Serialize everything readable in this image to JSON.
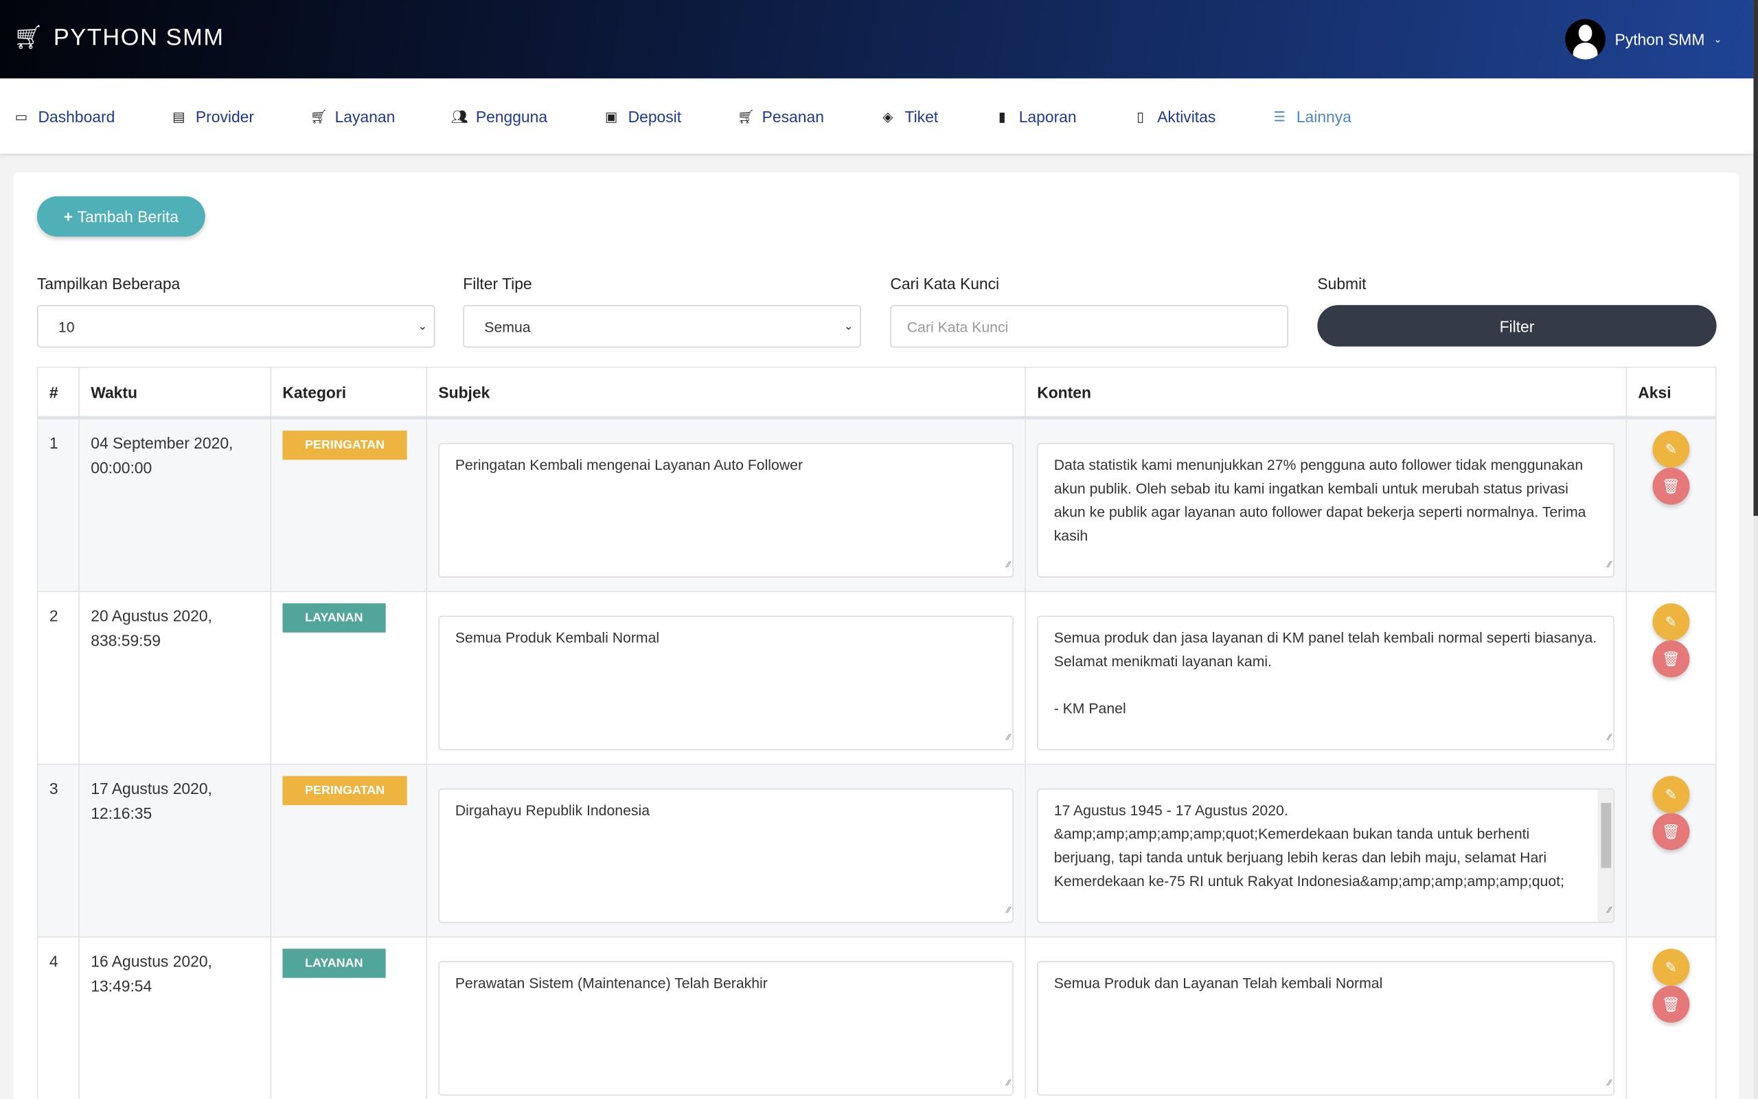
{
  "brand": "PYTHON SMM",
  "user": {
    "name": "Python SMM"
  },
  "nav": [
    {
      "label": "Dashboard",
      "icon": "monitor-icon"
    },
    {
      "label": "Provider",
      "icon": "server-icon"
    },
    {
      "label": "Layanan",
      "icon": "cart-icon"
    },
    {
      "label": "Pengguna",
      "icon": "users-icon"
    },
    {
      "label": "Deposit",
      "icon": "wallet-icon"
    },
    {
      "label": "Pesanan",
      "icon": "cart-icon"
    },
    {
      "label": "Tiket",
      "icon": "ticket-icon"
    },
    {
      "label": "Laporan",
      "icon": "book-icon"
    },
    {
      "label": "Aktivitas",
      "icon": "file-icon"
    },
    {
      "label": "Lainnya",
      "icon": "list-icon"
    }
  ],
  "add_button": "Tambah Berita",
  "filters": {
    "show_label": "Tampilkan Beberapa",
    "show_value": "10",
    "type_label": "Filter Tipe",
    "type_value": "Semua",
    "search_label": "Cari Kata Kunci",
    "search_placeholder": "Cari Kata Kunci",
    "submit_label": "Submit",
    "submit_button": "Filter"
  },
  "table": {
    "headers": [
      "#",
      "Waktu",
      "Kategori",
      "Subjek",
      "Konten",
      "Aksi"
    ],
    "rows": [
      {
        "no": "1",
        "time": "04 September 2020, 00:00:00",
        "category": "PERINGATAN",
        "subject": "Peringatan Kembali mengenai Layanan Auto Follower",
        "content": "Data statistik kami menunjukkan 27% pengguna auto follower tidak menggunakan akun publik. Oleh sebab itu kami ingatkan kembali untuk merubah status privasi akun ke publik agar layanan auto follower dapat bekerja seperti normalnya. Terima kasih"
      },
      {
        "no": "2",
        "time": "20 Agustus 2020, 838:59:59",
        "category": "LAYANAN",
        "subject": "Semua Produk Kembali Normal",
        "content": "Semua produk dan jasa layanan di KM panel telah kembali normal seperti biasanya. Selamat menikmati layanan kami.\n\n- KM Panel"
      },
      {
        "no": "3",
        "time": "17 Agustus 2020, 12:16:35",
        "category": "PERINGATAN",
        "subject": "Dirgahayu Republik Indonesia",
        "content": "17 Agustus 1945 - 17 Agustus 2020.\n&amp;amp;amp;amp;amp;quot;Kemerdekaan bukan tanda untuk berhenti berjuang, tapi tanda untuk berjuang lebih keras dan lebih maju, selamat Hari Kemerdekaan ke-75 RI untuk Rakyat Indonesia&amp;amp;amp;amp;amp;quot;"
      },
      {
        "no": "4",
        "time": "16 Agustus 2020, 13:49:54",
        "category": "LAYANAN",
        "subject": "Perawatan Sistem (Maintenance) Telah Berakhir",
        "content": "Semua Produk dan Layanan Telah kembali Normal"
      }
    ]
  },
  "colors": {
    "peringatan": "#edb53f",
    "layanan": "#52a59a",
    "edit": "#edb53f",
    "delete": "#e57878"
  }
}
